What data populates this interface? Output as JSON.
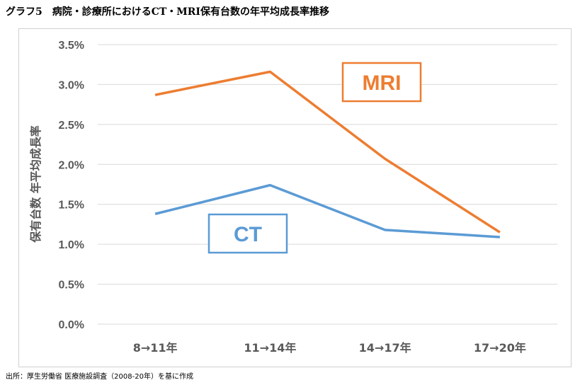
{
  "title": "グラフ5　病院・診療所におけるCT・MRI保有台数の年平均成長率推移",
  "source": "出所：厚生労働省 医療施設調査（2008-20年）を基に作成",
  "chart_data": {
    "type": "line",
    "title": "グラフ5　病院・診療所におけるCT・MRI保有台数の年平均成長率推移",
    "ylabel": "保有台数 年平均成長率",
    "xlabel": "",
    "categories": [
      "8→11年",
      "11→14年",
      "14→17年",
      "17→20年"
    ],
    "ylim": [
      0,
      3.5
    ],
    "yticks": [
      "0.0%",
      "0.5%",
      "1.0%",
      "1.5%",
      "2.0%",
      "2.5%",
      "3.0%",
      "3.5%"
    ],
    "grid": true,
    "series": [
      {
        "name": "MRI",
        "values": [
          2.87,
          3.16,
          2.07,
          1.15
        ],
        "color": "#ED7D31"
      },
      {
        "name": "CT",
        "values": [
          1.38,
          1.74,
          1.18,
          1.09
        ],
        "color": "#5B9BD5"
      }
    ]
  }
}
